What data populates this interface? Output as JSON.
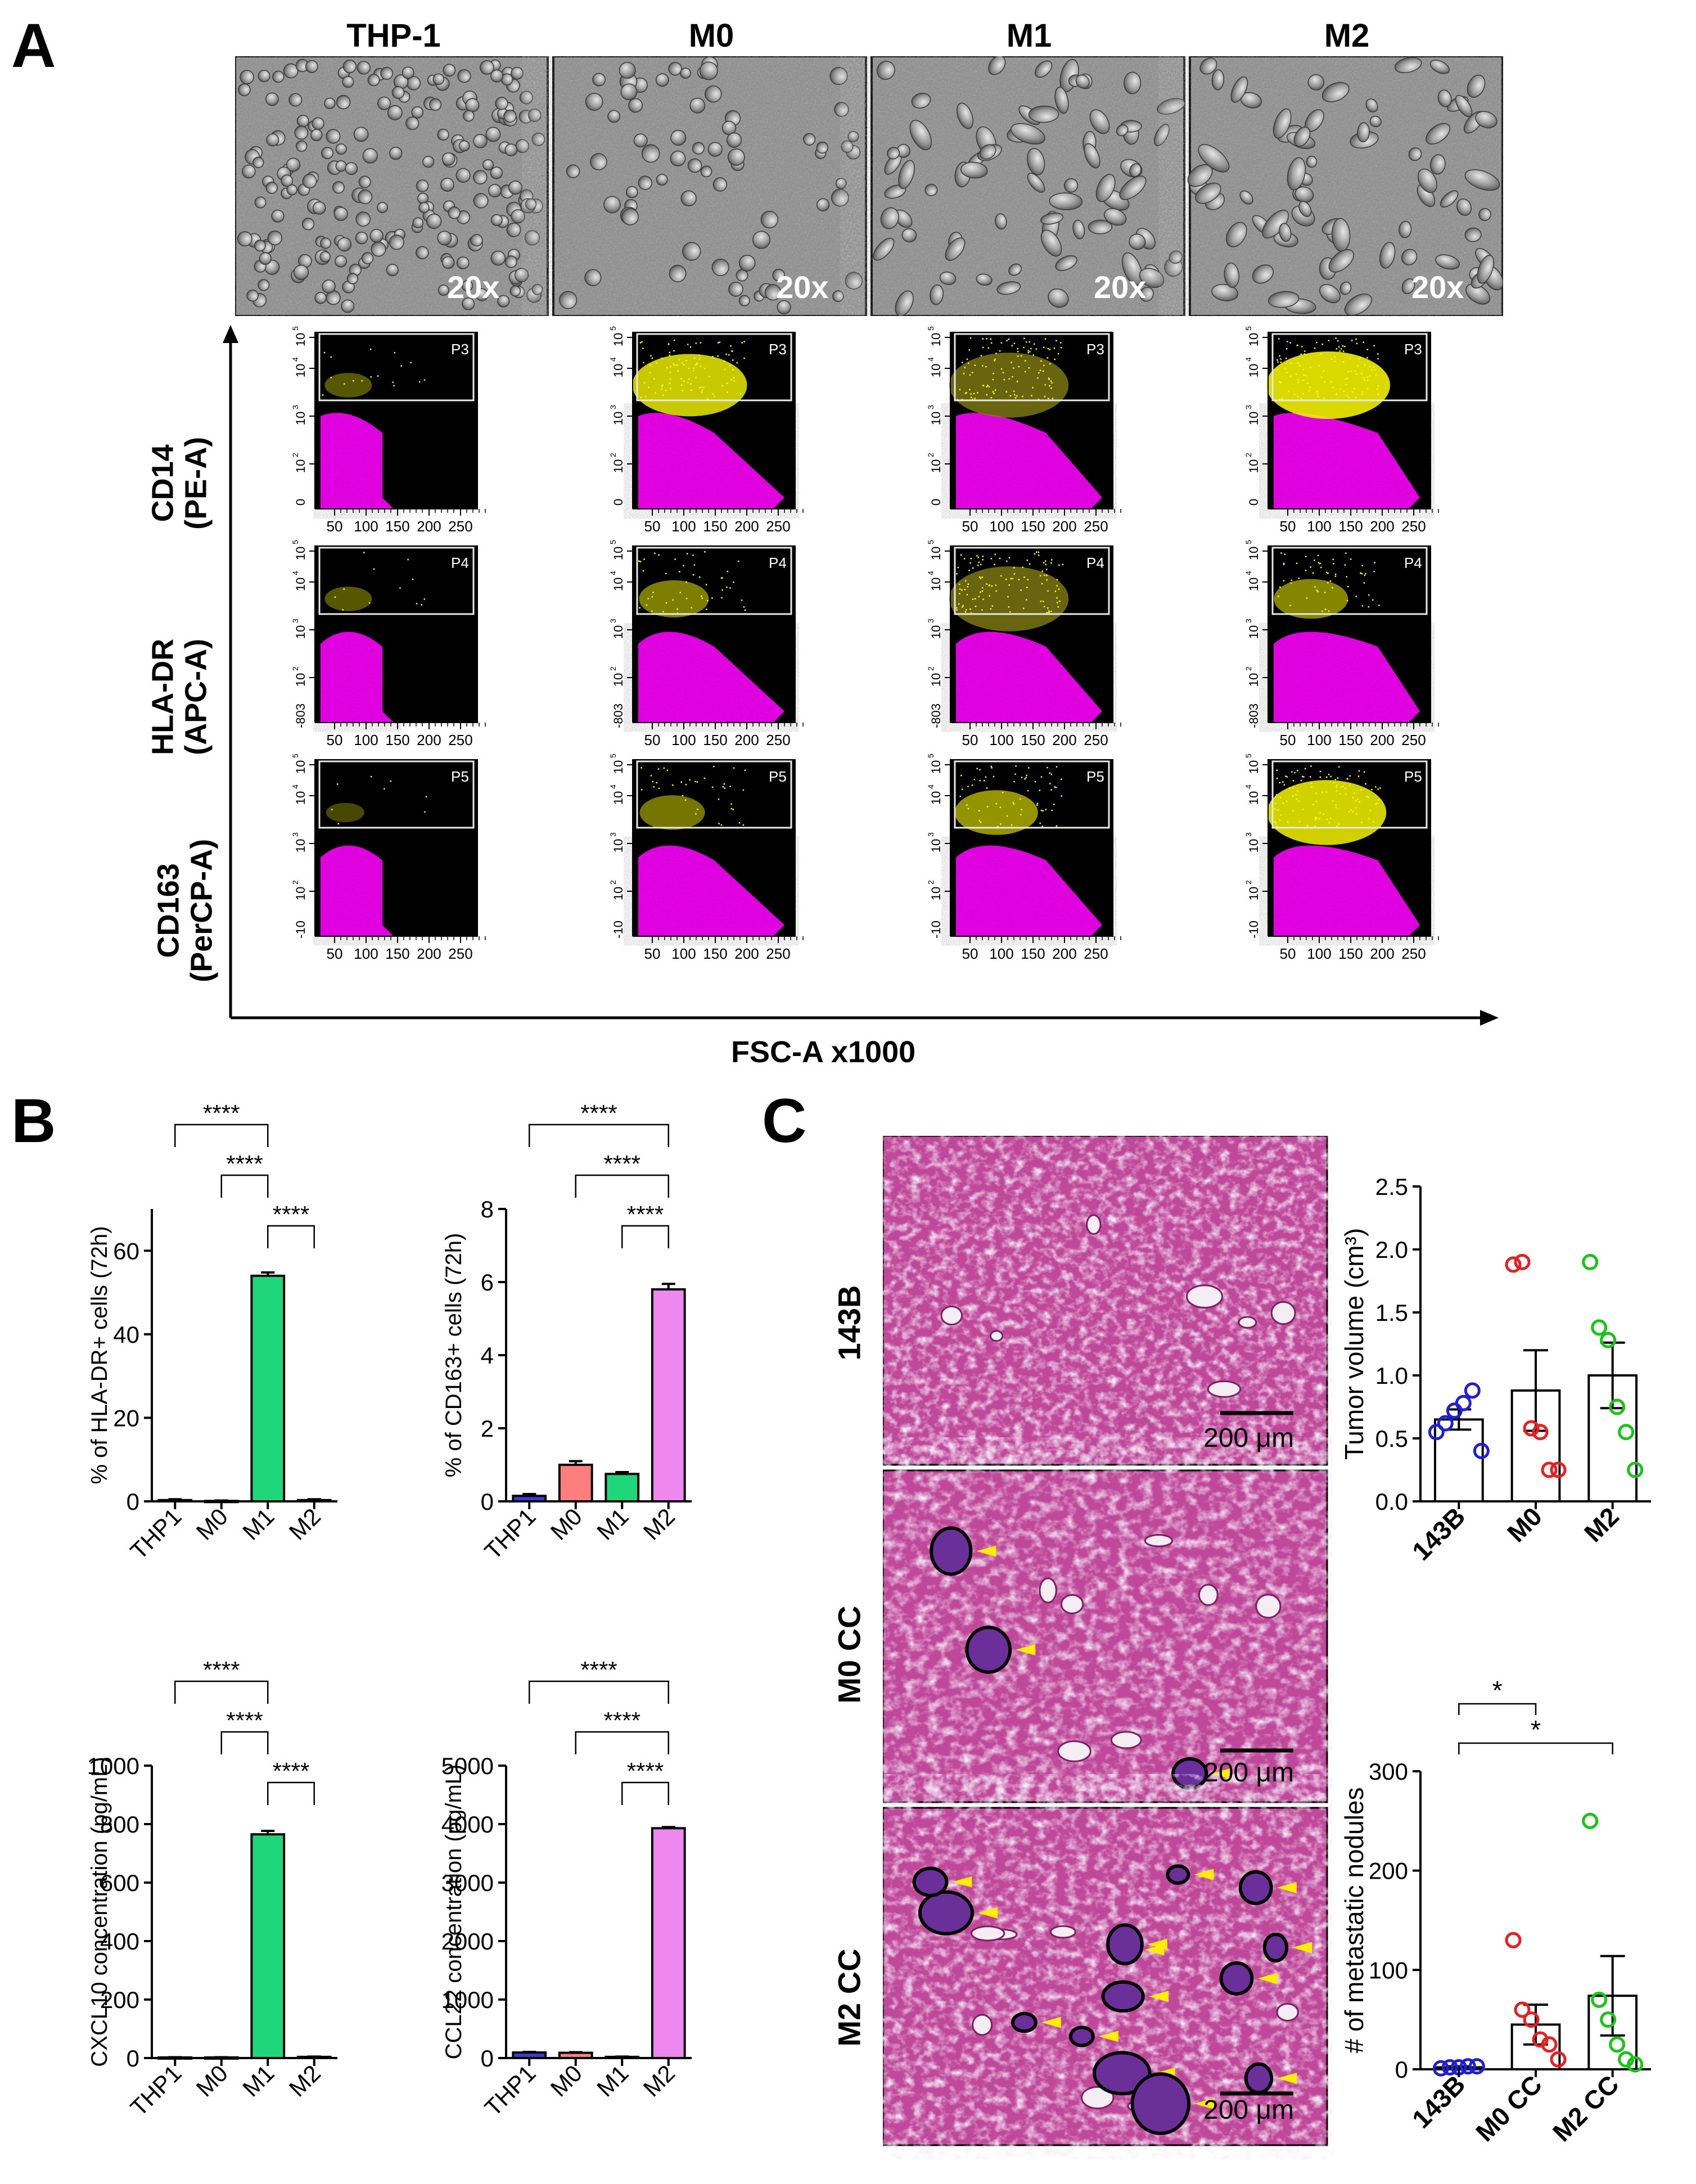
{
  "panel_labels": {
    "A": "A",
    "B": "B",
    "C": "C"
  },
  "panelA": {
    "conditions": [
      "THP-1",
      "M0",
      "M1",
      "M2"
    ],
    "magnification": "20x",
    "rows": [
      {
        "marker": "CD14",
        "channel": "(PE-A)",
        "gate": "P3",
        "ymin_label": "0"
      },
      {
        "marker": "HLA-DR",
        "channel": "(APC-A)",
        "gate": "P4",
        "ymin_label": "-803"
      },
      {
        "marker": "CD163",
        "channel": "(PerCP-A)",
        "gate": "P5",
        "ymin_label": "-10"
      }
    ],
    "y_ticks": [
      "10",
      "10",
      "10",
      "10"
    ],
    "y_exps": [
      "2",
      "3",
      "4",
      "5"
    ],
    "x_ticks": [
      "50",
      "100",
      "150",
      "200",
      "250"
    ],
    "x_axis_label": "FSC-A x1000",
    "colors": {
      "gated": "#ffff00",
      "ungated": "#ff00ff",
      "background": "#000000"
    }
  },
  "panelC": {
    "histology_labels": [
      "143B",
      "M0 CC",
      "M2 CC"
    ],
    "scale_bar": "200 μm"
  },
  "chart_data": [
    {
      "type": "bar",
      "ylabel": "% of HLA-DR+ cells (72h)",
      "categories": [
        "THP1",
        "M0",
        "M1",
        "M2"
      ],
      "values": [
        0.3,
        0.1,
        54,
        0.3
      ],
      "errors": [
        0.2,
        0.1,
        0.8,
        0.2
      ],
      "colors": [
        "#3b3bd1",
        "#ff7f7f",
        "#1fd67a",
        "#ee88ee"
      ],
      "ylim": [
        0,
        70
      ],
      "yticks": [
        "0",
        "20",
        "40",
        "60"
      ],
      "significance": [
        {
          "from": "THP1",
          "to": "M1",
          "label": "****"
        },
        {
          "from": "M0",
          "to": "M1",
          "label": "****"
        },
        {
          "from": "M1",
          "to": "M2",
          "label": "****"
        }
      ]
    },
    {
      "type": "bar",
      "ylabel": "% of CD163+ cells (72h)",
      "categories": [
        "THP1",
        "M0",
        "M1",
        "M2"
      ],
      "values": [
        0.15,
        1.0,
        0.75,
        5.8
      ],
      "errors": [
        0.05,
        0.1,
        0.05,
        0.15
      ],
      "colors": [
        "#3b3bd1",
        "#ff7f7f",
        "#1fd67a",
        "#ee88ee"
      ],
      "ylim": [
        0,
        8
      ],
      "yticks": [
        "0",
        "2",
        "4",
        "6",
        "8"
      ],
      "significance": [
        {
          "from": "THP1",
          "to": "M2",
          "label": "****"
        },
        {
          "from": "M0",
          "to": "M2",
          "label": "****"
        },
        {
          "from": "M1",
          "to": "M2",
          "label": "****"
        }
      ]
    },
    {
      "type": "bar",
      "ylabel": "CXCL10 concentration (pg/mL)",
      "categories": [
        "THP1",
        "M0",
        "M1",
        "M2"
      ],
      "values": [
        2,
        2,
        765,
        4
      ],
      "errors": [
        1,
        1,
        12,
        1
      ],
      "colors": [
        "#3b3bd1",
        "#ff7f7f",
        "#1fd67a",
        "#ee88ee"
      ],
      "ylim": [
        0,
        1000
      ],
      "yticks": [
        "0",
        "200",
        "400",
        "600",
        "800",
        "1000"
      ],
      "significance": [
        {
          "from": "THP1",
          "to": "M1",
          "label": "****"
        },
        {
          "from": "M0",
          "to": "M1",
          "label": "****"
        },
        {
          "from": "M1",
          "to": "M2",
          "label": "****"
        }
      ]
    },
    {
      "type": "bar",
      "ylabel": "CCL22 concentration (pg/mL)",
      "categories": [
        "THP1",
        "M0",
        "M1",
        "M2"
      ],
      "values": [
        95,
        90,
        20,
        3930
      ],
      "errors": [
        10,
        10,
        5,
        20
      ],
      "colors": [
        "#3b3bd1",
        "#ff7f7f",
        "#1fd67a",
        "#ee88ee"
      ],
      "ylim": [
        0,
        5000
      ],
      "yticks": [
        "0",
        "1000",
        "2000",
        "3000",
        "4000",
        "5000"
      ],
      "significance": [
        {
          "from": "THP1",
          "to": "M2",
          "label": "****"
        },
        {
          "from": "M0",
          "to": "M2",
          "label": "****"
        },
        {
          "from": "M1",
          "to": "M2",
          "label": "****"
        }
      ]
    },
    {
      "type": "scatter",
      "ylabel": "Tumor volume (cm³)",
      "categories": [
        "143B",
        "M0",
        "M2"
      ],
      "means": [
        0.65,
        0.88,
        1.0
      ],
      "errors": [
        0.08,
        0.32,
        0.26
      ],
      "points": [
        [
          0.55,
          0.62,
          0.72,
          0.78,
          0.88,
          0.4
        ],
        [
          1.88,
          1.9,
          0.58,
          0.55,
          0.25,
          0.25
        ],
        [
          1.9,
          1.38,
          1.28,
          0.75,
          0.55,
          0.25
        ]
      ],
      "colors": [
        "#1f1fd6",
        "#e62020",
        "#18c418"
      ],
      "ylim": [
        0,
        2.5
      ],
      "yticks": [
        "0.0",
        "0.5",
        "1.0",
        "1.5",
        "2.0",
        "2.5"
      ],
      "significance": []
    },
    {
      "type": "scatter",
      "ylabel": "# of metastatic nodules",
      "categories": [
        "143B",
        "M0 CC",
        "M2 CC"
      ],
      "means": [
        2,
        45,
        74
      ],
      "errors": [
        1,
        20,
        40
      ],
      "points": [
        [
          1,
          2,
          2,
          3,
          3
        ],
        [
          130,
          60,
          50,
          30,
          25,
          10
        ],
        [
          250,
          70,
          50,
          25,
          10,
          5
        ]
      ],
      "colors": [
        "#1f1fd6",
        "#e62020",
        "#18c418"
      ],
      "ylim": [
        0,
        300
      ],
      "yticks": [
        "0",
        "100",
        "200",
        "300"
      ],
      "significance": [
        {
          "from": "143B",
          "to": "M0 CC",
          "label": "*"
        },
        {
          "from": "143B",
          "to": "M2 CC",
          "label": "*"
        }
      ]
    }
  ]
}
